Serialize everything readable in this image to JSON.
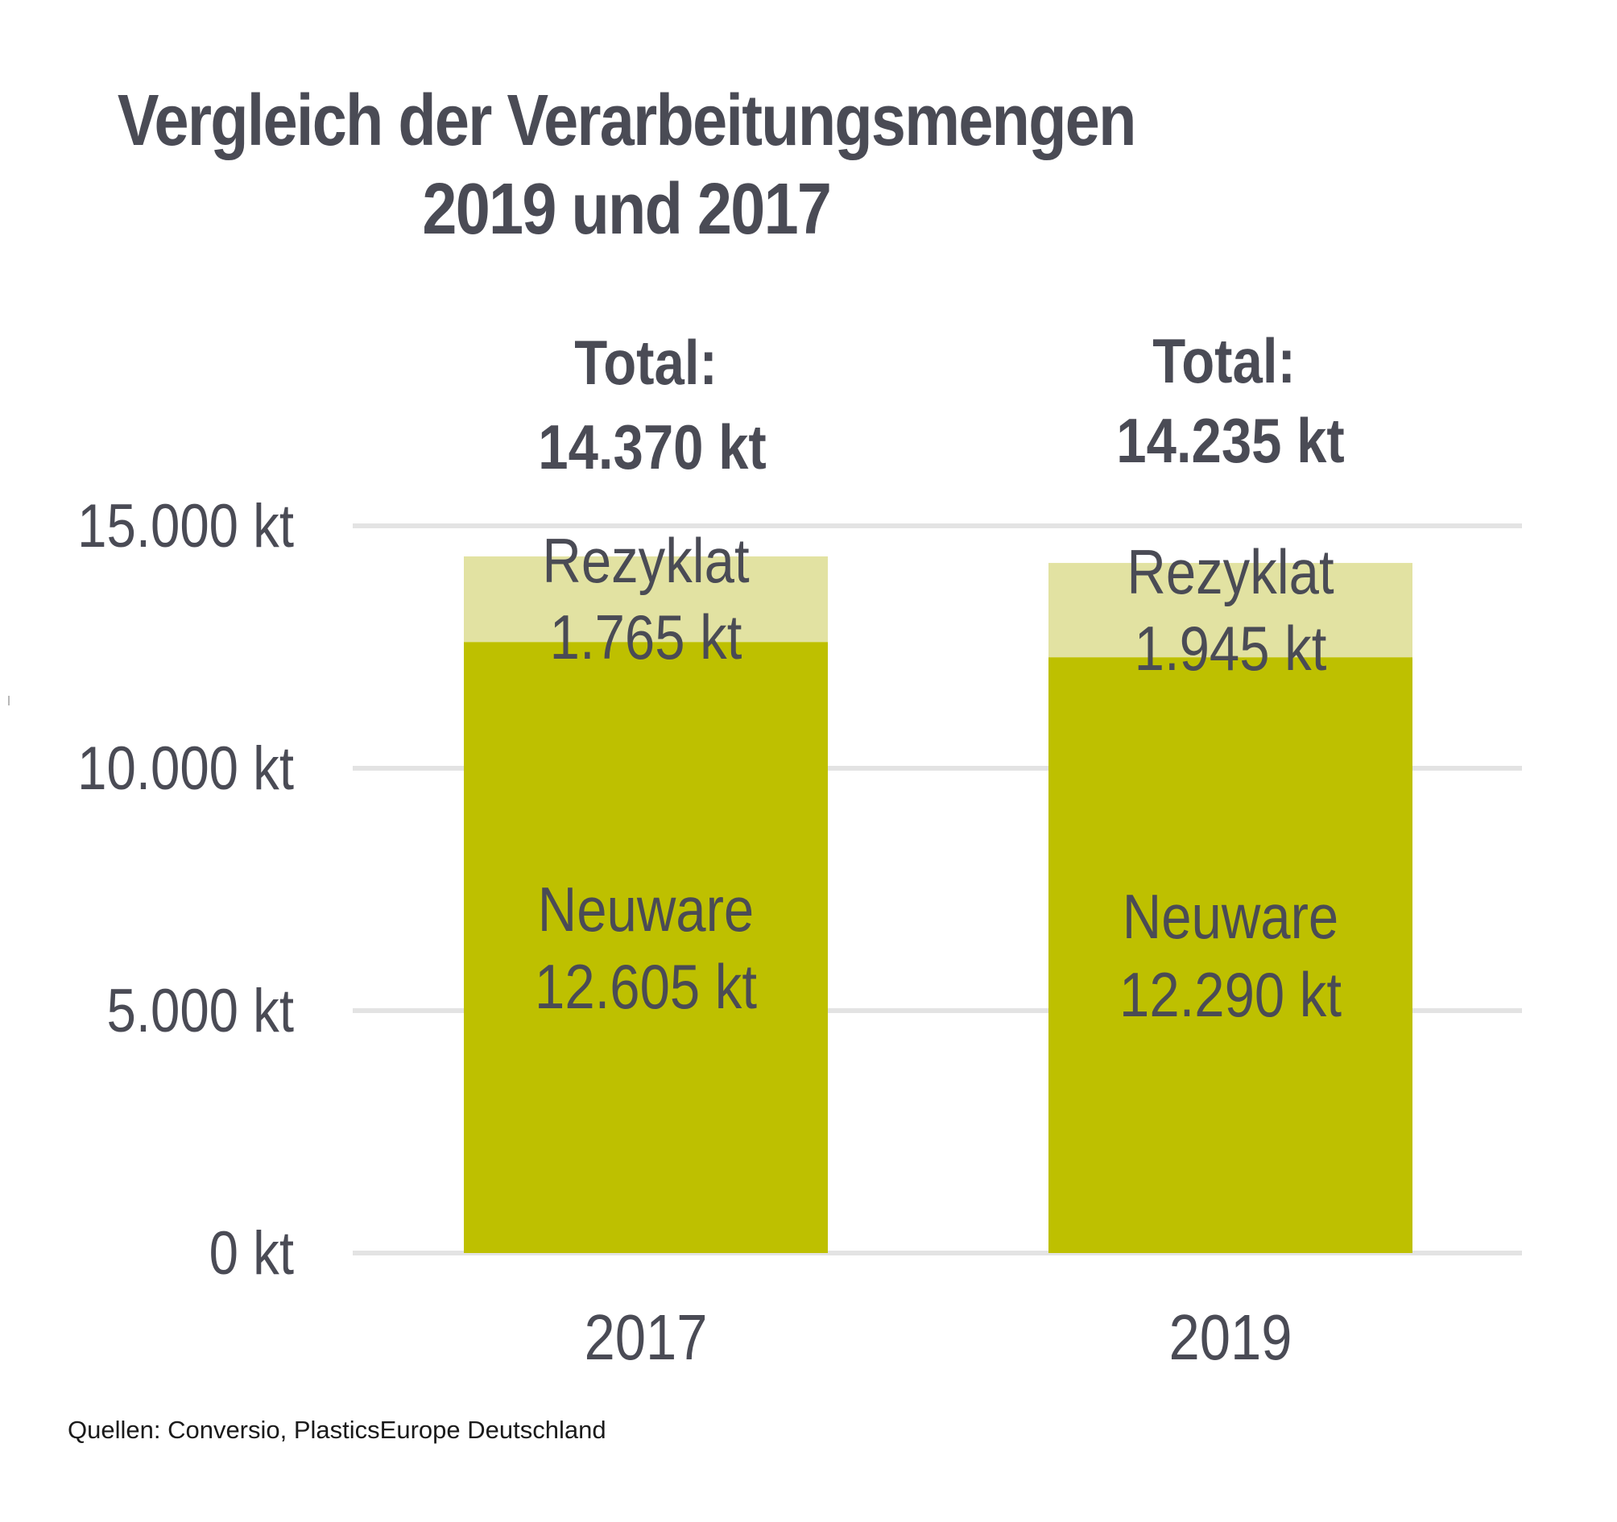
{
  "chart_data": {
    "type": "bar",
    "stacked": true,
    "title": "Vergleich der Verarbeitungsmengen 2019 und 2017",
    "title_lines": [
      "Vergleich der Verarbeitungsmengen",
      "2019 und 2017"
    ],
    "xlabel": "",
    "ylabel": "",
    "categories": [
      "2017",
      "2019"
    ],
    "ylim": [
      0,
      15000
    ],
    "yticks": [
      0,
      5000,
      10000,
      15000
    ],
    "ytick_labels": [
      "0 kt",
      "5.000 kt",
      "10.000 kt",
      "15.000 kt"
    ],
    "grid": true,
    "legend": "none",
    "unit": "kt",
    "series": [
      {
        "name": "Neuware",
        "color": "#bec000",
        "values": [
          12605,
          12290
        ],
        "labels": [
          "12.605 kt",
          "12.290 kt"
        ]
      },
      {
        "name": "Rezyklat",
        "color": "#e2e2a2",
        "values": [
          1765,
          1945
        ],
        "labels": [
          "1.765 kt",
          "1.945 kt"
        ]
      }
    ],
    "totals": {
      "prefix": "Total:",
      "values": [
        14370,
        14235
      ],
      "labels": [
        "14.370 kt",
        "14.235 kt"
      ]
    },
    "colors": {
      "text": "#4a4b55",
      "grid": "#e3e3e3"
    }
  },
  "footer": {
    "source": "Quellen: Conversio, PlasticsEurope Deutschland"
  }
}
